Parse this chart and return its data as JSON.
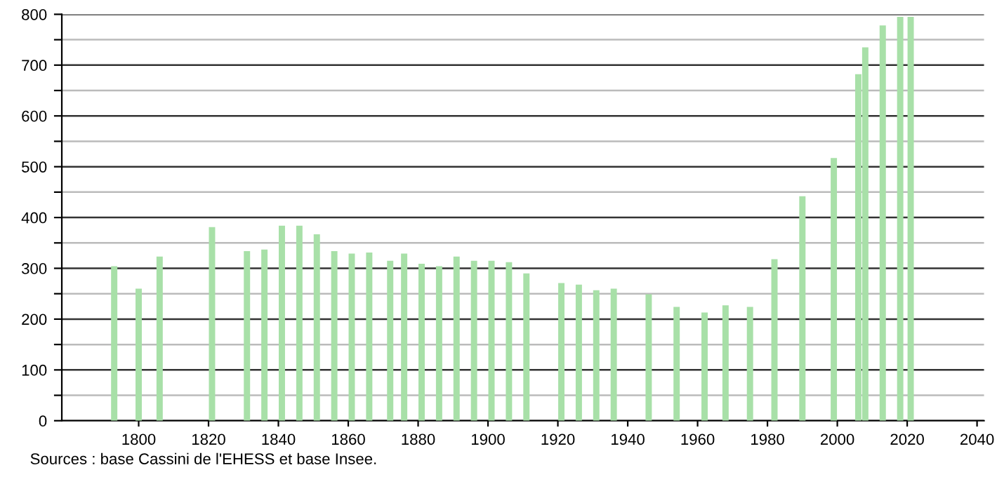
{
  "chart_data": {
    "type": "bar",
    "x": [
      1793,
      1800,
      1806,
      1821,
      1831,
      1836,
      1841,
      1846,
      1851,
      1856,
      1861,
      1866,
      1872,
      1876,
      1881,
      1886,
      1891,
      1896,
      1901,
      1906,
      1911,
      1921,
      1926,
      1931,
      1936,
      1946,
      1954,
      1962,
      1968,
      1975,
      1982,
      1990,
      1999,
      2006,
      2008,
      2013,
      2018,
      2021
    ],
    "series": [
      {
        "color": "#a8e0a8",
        "values": [
          304,
          260,
          323,
          381,
          334,
          337,
          384,
          384,
          367,
          334,
          329,
          331,
          315,
          329,
          309,
          304,
          323,
          315,
          315,
          312,
          290,
          271,
          268,
          257,
          260,
          249,
          224,
          213,
          227,
          224,
          318,
          442,
          517,
          682,
          735,
          778,
          795,
          795
        ]
      }
    ],
    "xlim": [
      1778,
      2042
    ],
    "xticks": [
      1800,
      1820,
      1840,
      1860,
      1880,
      1900,
      1920,
      1940,
      1960,
      1980,
      2000,
      2020,
      2040
    ],
    "ylim": [
      0,
      800
    ],
    "yticks": [
      0,
      {
        "value": 50,
        "label": null
      },
      100,
      {
        "value": 150,
        "label": null
      },
      200,
      {
        "value": 250,
        "label": null
      },
      300,
      {
        "value": 350,
        "label": null
      },
      400,
      {
        "value": 450,
        "label": null
      },
      500,
      {
        "value": 550,
        "label": null
      },
      600,
      {
        "value": 650,
        "label": null
      },
      700,
      {
        "value": 750,
        "label": null
      },
      800
    ],
    "grid": "y",
    "legend": false,
    "annotations": [
      "Sources : base Cassini de l'EHESS et base Insee."
    ]
  }
}
